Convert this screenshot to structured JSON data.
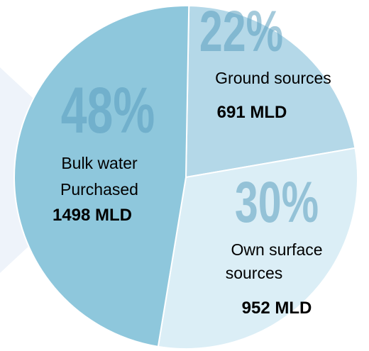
{
  "chart_data": {
    "type": "pie",
    "slices": [
      {
        "label_lines": [
          "Ground sources"
        ],
        "value": 691,
        "value_label": "691 MLD",
        "percent": 22,
        "percent_label": "22%",
        "color": "#b4d8e8"
      },
      {
        "label_lines": [
          "Own surface",
          "sources"
        ],
        "value": 952,
        "value_label": "952 MLD",
        "percent": 30,
        "percent_label": "30%",
        "color": "#dbeef6"
      },
      {
        "label_lines": [
          "Bulk water",
          "Purchased"
        ],
        "value": 1498,
        "value_label": "1498 MLD",
        "percent": 48,
        "percent_label": "48%",
        "color": "#8ec7dc"
      }
    ],
    "accent_color": "#5b9fbf",
    "background_chevron_color": "#eef3fa"
  }
}
